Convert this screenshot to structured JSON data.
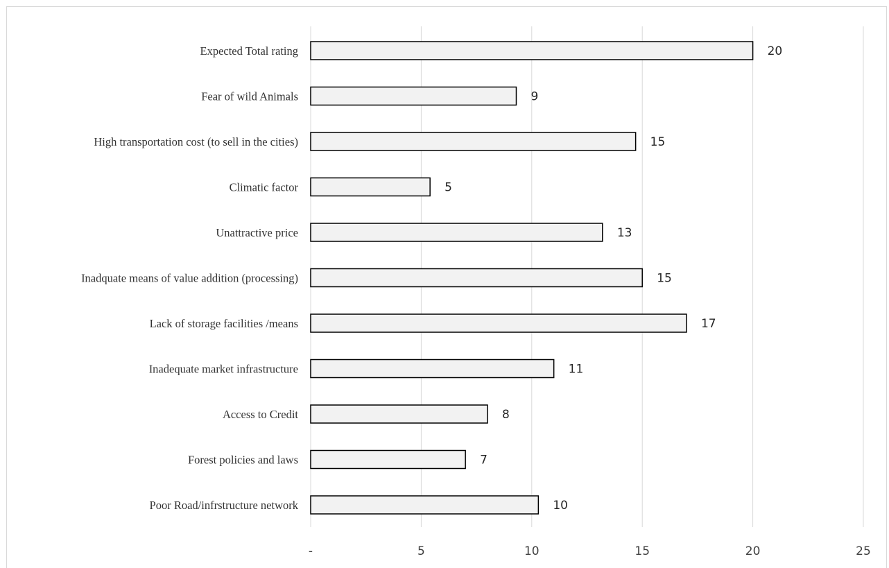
{
  "chart_data": {
    "type": "bar",
    "orientation": "horizontal",
    "categories": [
      "Expected Total rating",
      "Fear of wild Animals",
      "High transportation cost (to sell in the cities)",
      "Climatic factor",
      "Unattractive price",
      "Inadquate means of value addition (processing)",
      "Lack of storage facilities /means",
      "Inadequate market infrastructure",
      "Access to Credit",
      "Forest policies and  laws",
      "Poor Road/infrstructure  network"
    ],
    "values": [
      20,
      9.3,
      14.7,
      5.4,
      13.2,
      15,
      17,
      11,
      8,
      7,
      10.3
    ],
    "value_labels": [
      "20",
      "9",
      "15",
      "5",
      "13",
      "15",
      "17",
      "11",
      "8",
      "7",
      "10"
    ],
    "xlim": [
      0,
      25
    ],
    "x_ticks": [
      0,
      5,
      10,
      15,
      20,
      25
    ],
    "x_tick_labels": [
      "-",
      "5",
      "10",
      "15",
      "20",
      "25"
    ],
    "grid": "vertical",
    "legend": "none",
    "colors": {
      "bar_fill": "#f2f2f2",
      "bar_stroke": "#000000",
      "grid": "#d9d9d9"
    }
  }
}
